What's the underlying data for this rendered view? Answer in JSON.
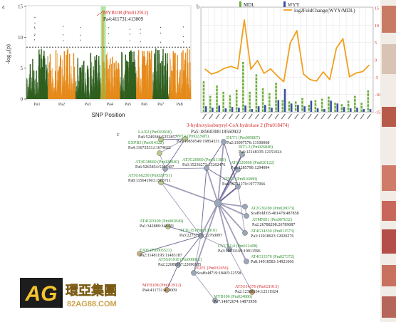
{
  "chart_data": [
    {
      "panel": "a",
      "type": "scatter",
      "subtype": "manhattan",
      "xlabel": "SNP Position",
      "ylabel": "-log₁₀(p)",
      "ylim": [
        0,
        15
      ],
      "yticks": [
        0,
        5,
        10,
        15
      ],
      "threshold": 8.4,
      "categories": [
        "Pa1",
        "Pa2",
        "Pa3",
        "Pa4",
        "Pa5",
        "Pa6",
        "Pa7",
        "Pa8"
      ],
      "colors": [
        "#2f5f1f",
        "#e58a1a"
      ],
      "highlight_color": "#6fcf57",
      "peak_height": 8.2,
      "annotation": {
        "gene": "MYB108 (Pm012912)",
        "position": "Pa4:411731:413009",
        "chromosome": "Pa4",
        "value": 14.2
      }
    },
    {
      "panel": "b",
      "type": "bar",
      "legend": [
        "MDL",
        "WYY",
        "log2FoldChange(WYY/MDL)"
      ],
      "legend_position": "top",
      "series_colors": {
        "MDL": "#6fae3b",
        "WYY": "#3a4fa8",
        "log2FoldChange(WYY/MDL)": "#f0a01e"
      },
      "ylim_left": [
        0,
        15
      ],
      "ylim_right": [
        -15,
        15
      ],
      "yticks_right": [
        -15,
        -10,
        -5,
        0,
        5,
        10,
        15
      ],
      "categories": [
        "g1",
        "g2",
        "g3",
        "g4",
        "g5",
        "g6",
        "g7",
        "g8",
        "g9",
        "g10",
        "g11",
        "g12",
        "g13",
        "g14",
        "g15",
        "g16",
        "g17",
        "g18",
        "g19",
        "g20",
        "g21",
        "g22",
        "g23",
        "g24",
        "g25",
        "g26"
      ],
      "series": [
        {
          "name": "MDL",
          "values": [
            4.4,
            2.3,
            3.8,
            2.9,
            2.4,
            3.2,
            7.2,
            2.9,
            5.4,
            3.4,
            2.7,
            4.2,
            1.7,
            1.5,
            1.5,
            2.0,
            1.0,
            1.7,
            1.9,
            2.2,
            1.3,
            1.1,
            1.6,
            2.3,
            1.3,
            3.1
          ]
        },
        {
          "name": "WYY",
          "values": [
            0.8,
            0.6,
            0.9,
            0.5,
            0.7,
            0.6,
            0.9,
            0.4,
            0.8,
            1.0,
            0.6,
            1.7,
            3.3,
            1.2,
            1.0,
            0.8,
            1.6,
            0.5,
            0.4,
            1.6,
            1.2,
            0.7,
            0.5,
            0.6,
            0.4,
            0.4
          ]
        },
        {
          "name": "log2FoldChange(WYY/MDL)",
          "values": [
            -2.6,
            -4.1,
            -3.5,
            -2.4,
            -1.9,
            -2.6,
            11.5,
            -2.7,
            -0.2,
            -3.9,
            -2.6,
            -4.6,
            -6.3,
            4.9,
            8.4,
            -4.1,
            -5.7,
            -6.1,
            -3.5,
            -5.7,
            3.3,
            6.1,
            -4.9,
            -3.8,
            -3.4,
            -1.5
          ]
        }
      ]
    },
    {
      "panel": "c",
      "type": "network",
      "title": "3-hydroxyisobutyryl-CoA hydrolase 2 (Pm018474)",
      "title_position": "Pa5:18560308:18560922",
      "nodes": [
        {
          "id": "LAX2",
          "name": "LAX2 (Pm020038)",
          "pos": "Pa6:5249386:5252857",
          "color": "#b9c98a",
          "label_color": "#2f8f2f"
        },
        {
          "id": "EXPB3",
          "name": "EXPB3 (Pm014322)",
          "pos": "Pa4:11673531:11674622",
          "color": "#b9c98a",
          "label_color": "#2f8f2f"
        },
        {
          "id": "PP2A",
          "name": "PP2A (Pm022685)",
          "pos": "Pa5:19850549:19854331",
          "color": "#b9c98a",
          "label_color": "#2f8f2f"
        },
        {
          "id": "DUT1",
          "name": "DUT1 (Pm005807)",
          "pos": "Pa2:13097576:13100068",
          "color": "#9aa7b8",
          "label_color": "#2f8f2f"
        },
        {
          "id": "AT4G38660",
          "name": "AT4G38660 (Pm020040)",
          "pos": "Pa6:5265854:5267407",
          "color": "#9aa7b8",
          "label_color": "#2f8f2f"
        },
        {
          "id": "AT3G20060",
          "name": "AT3G20060 (Pm011389)",
          "pos": "Pa3:15236273:15262476",
          "color": "#9aa7b8",
          "label_color": "#2f8f2f"
        },
        {
          "id": "IST1",
          "name": "IST1.3 (Pm026848)",
          "pos": "Pa6:12148335:12151024",
          "color": "#9aa7b8",
          "label_color": "#2f8f2f"
        },
        {
          "id": "AT1G20060",
          "name": "AT1G20060 (Pm020122)",
          "pos": "Pa6:1285790:1294094",
          "color": "#9aa7b8",
          "label_color": "#2f8f2f"
        },
        {
          "id": "AT5G66230",
          "name": "AT5G66230 (Pm026751)",
          "pos": "Pa8:11564190:11565711",
          "color": "#b9c98a",
          "label_color": "#2f8f2f"
        },
        {
          "id": "AT5G2",
          "name": "AT5G2 (Pm016880)",
          "pos": "Pa4:19731270:19777066",
          "color": "#9aa7b8",
          "label_color": "#2f8f2f"
        },
        {
          "id": "AT2G36200",
          "name": "AT2G36200 (Pm028073)",
          "pos": "Scaffold:03-481478:487858",
          "color": "#9aa7b8",
          "label_color": "#2f8f2f"
        },
        {
          "id": "ATMND1",
          "name": "ATMND1 (Pm007632)",
          "pos": "Pa2:26788298:26789087",
          "color": "#9aa7b8",
          "label_color": "#2f8f2f"
        },
        {
          "id": "AT4G03100",
          "name": "AT4G03100 (Pm002849)",
          "pos": "Pa1:342889:348421",
          "color": "#b9c98a",
          "label_color": "#2f8f2f"
        },
        {
          "id": "AT3G15",
          "name": "AT3G15 (Pm013010)",
          "pos": "Pa3:22757311:22760097",
          "color": "#9aa7b8",
          "label_color": "#2f8f2f"
        },
        {
          "id": "AT4G14330",
          "name": "AT4G14330 (Pm011573)",
          "pos": "Pa3:12018923:12020276",
          "color": "#9aa7b8",
          "label_color": "#2f8f2f"
        },
        {
          "id": "EJO6",
          "name": "EJO6 (Pm005523)",
          "pos": "Pa2:11481195:11483187",
          "color": "#c9b48a",
          "label_color": "#2f8f2f"
        },
        {
          "id": "CYCB1",
          "name": "CYCB1;4 (Pm012408)",
          "pos": "Pa3:19911169:19911596",
          "color": "#9aa7b8",
          "label_color": "#2f8f2f"
        },
        {
          "id": "AT4G13370",
          "name": "AT4G13370 (Pm027372)",
          "pos": "Pa8:14918583:14921066",
          "color": "#9aa7b8",
          "label_color": "#2f8f2f"
        },
        {
          "id": "AT5G01910",
          "name": "AT5G01910 (Pm008011)",
          "pos": "Pa2:22689357:22690185",
          "color": "#9aa7b8",
          "label_color": "#2f8f2f"
        },
        {
          "id": "E2F1",
          "name": "E2F1 (Pm031056)",
          "pos": "Scaffold719:18465:22558",
          "color": "#9aa7b8",
          "label_color": "#d62b2b"
        },
        {
          "id": "MYB108",
          "name": "MYB108 (Pm012912)",
          "pos": "Pa4:411731:413009",
          "color": "#c9a16b",
          "label_color": "#d62b2b"
        },
        {
          "id": "MYB106",
          "name": "MYB106 (Pm024886)",
          "pos": "Pa7:14872674:14873958",
          "color": "#9aa7b8",
          "label_color": "#2f8f2f"
        },
        {
          "id": "AT3G14370",
          "name": "AT3G14370 (Pm021913)",
          "pos": "Pa2:12308334:12311924",
          "color": "#c9a16b",
          "label_color": "#d62b2b"
        },
        {
          "id": "HUB",
          "name": "",
          "pos": "",
          "color": "#9aa7b8",
          "label_color": "#2f8f2f"
        }
      ],
      "edges": [
        [
          "LAX2",
          "PP2A"
        ],
        [
          "EXPB3",
          "PP2A"
        ],
        [
          "EXPB3",
          "AT4G38660"
        ],
        [
          "PP2A",
          "AT4G38660"
        ],
        [
          "AT4G38660",
          "AT3G20060"
        ],
        [
          "AT4G38660",
          "AT5G66230"
        ],
        [
          "AT3G20060",
          "DUT1"
        ],
        [
          "AT3G20060",
          "HUB"
        ],
        [
          "DUT1",
          "HUB"
        ],
        [
          "IST1",
          "HUB"
        ],
        [
          "AT1G20060",
          "HUB"
        ],
        [
          "AT5G66230",
          "HUB"
        ],
        [
          "AT5G2",
          "HUB"
        ],
        [
          "AT2G36200",
          "HUB"
        ],
        [
          "ATMND1",
          "HUB"
        ],
        [
          "AT4G03100",
          "AT3G15"
        ],
        [
          "AT3G15",
          "HUB"
        ],
        [
          "AT4G14330",
          "HUB"
        ],
        [
          "EJO6",
          "AT3G15"
        ],
        [
          "CYCB1",
          "HUB"
        ],
        [
          "AT4G13370",
          "HUB"
        ],
        [
          "AT5G01910",
          "AT3G15"
        ],
        [
          "E2F1",
          "AT3G15"
        ],
        [
          "E2F1",
          "HUB"
        ],
        [
          "MYB108",
          "AT5G01910"
        ],
        [
          "MYB106",
          "E2F1"
        ],
        [
          "AT3G14370",
          "CYCB1"
        ],
        [
          "AT3G20060",
          "AT5G2"
        ],
        [
          "AT5G66230",
          "AT3G15"
        ],
        [
          "AT5G2",
          "AT4G14330"
        ],
        [
          "DUT1",
          "AT5G2"
        ],
        [
          "AT3G15",
          "CYCB1"
        ],
        [
          "AT2G36200",
          "ATMND1"
        ],
        [
          "AT3G20060",
          "AT3G15"
        ]
      ]
    }
  ],
  "watermark": {
    "badge": "AG",
    "name": "環亞集團",
    "url": "82AG88.COM"
  }
}
